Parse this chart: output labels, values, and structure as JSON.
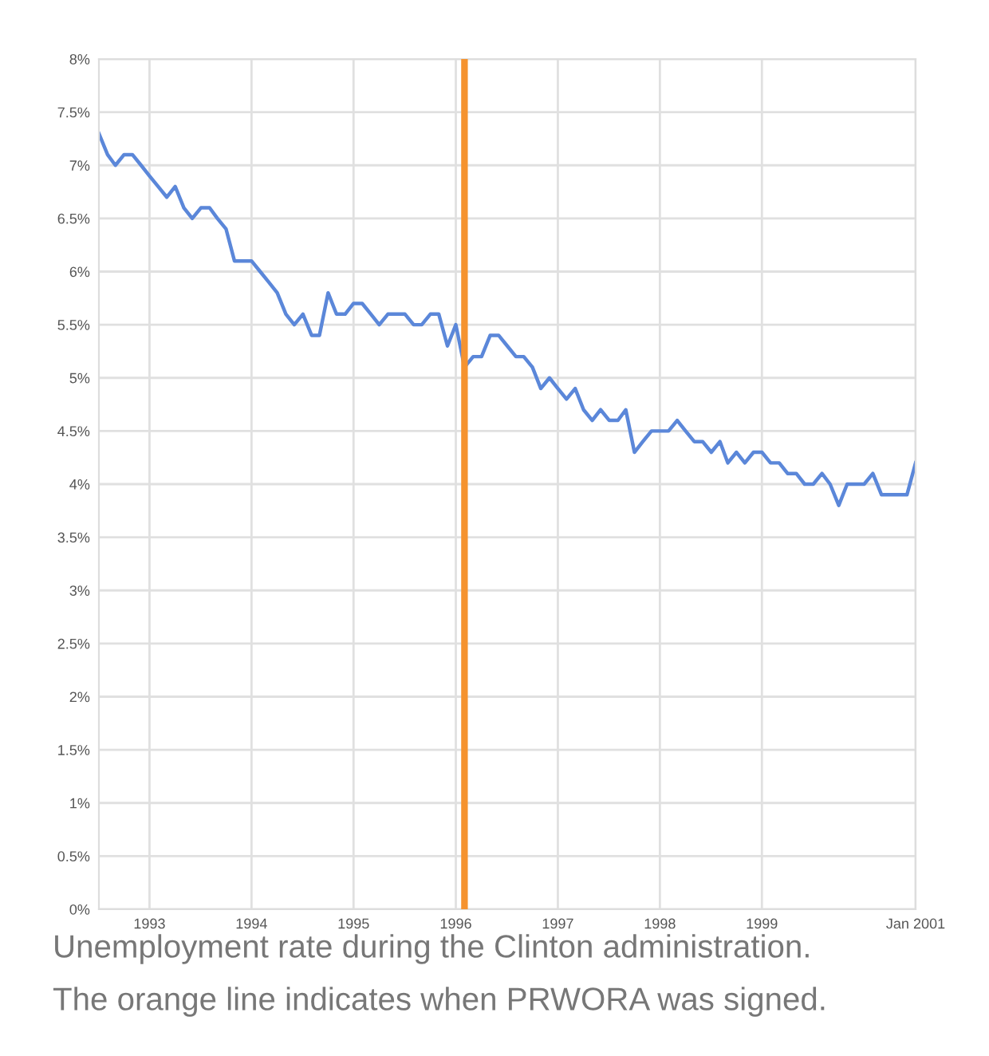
{
  "chart_data": {
    "type": "line",
    "x": [
      "1993-01",
      "1993-02",
      "1993-03",
      "1993-04",
      "1993-05",
      "1993-06",
      "1993-07",
      "1993-08",
      "1993-09",
      "1993-10",
      "1993-11",
      "1993-12",
      "1994-01",
      "1994-02",
      "1994-03",
      "1994-04",
      "1994-05",
      "1994-06",
      "1994-07",
      "1994-08",
      "1994-09",
      "1994-10",
      "1994-11",
      "1994-12",
      "1995-01",
      "1995-02",
      "1995-03",
      "1995-04",
      "1995-05",
      "1995-06",
      "1995-07",
      "1995-08",
      "1995-09",
      "1995-10",
      "1995-11",
      "1995-12",
      "1996-01",
      "1996-02",
      "1996-03",
      "1996-04",
      "1996-05",
      "1996-06",
      "1996-07",
      "1996-08",
      "1996-09",
      "1996-10",
      "1996-11",
      "1996-12",
      "1997-01",
      "1997-02",
      "1997-03",
      "1997-04",
      "1997-05",
      "1997-06",
      "1997-07",
      "1997-08",
      "1997-09",
      "1997-10",
      "1997-11",
      "1997-12",
      "1998-01",
      "1998-02",
      "1998-03",
      "1998-04",
      "1998-05",
      "1998-06",
      "1998-07",
      "1998-08",
      "1998-09",
      "1998-10",
      "1998-11",
      "1998-12",
      "1999-01",
      "1999-02",
      "1999-03",
      "1999-04",
      "1999-05",
      "1999-06",
      "1999-07",
      "1999-08",
      "1999-09",
      "1999-10",
      "1999-11",
      "1999-12",
      "2000-01",
      "2000-02",
      "2000-03",
      "2000-04",
      "2000-05",
      "2000-06",
      "2000-07",
      "2000-08",
      "2000-09",
      "2000-10",
      "2000-11",
      "2000-12",
      "2001-01"
    ],
    "series": [
      {
        "color": "#5b87d9",
        "values": [
          7.3,
          7.1,
          7.0,
          7.1,
          7.1,
          7.0,
          6.9,
          6.8,
          6.7,
          6.8,
          6.6,
          6.5,
          6.6,
          6.6,
          6.5,
          6.4,
          6.1,
          6.1,
          6.1,
          6.0,
          5.9,
          5.8,
          5.6,
          5.5,
          5.6,
          5.4,
          5.4,
          5.8,
          5.6,
          5.6,
          5.7,
          5.7,
          5.6,
          5.5,
          5.6,
          5.6,
          5.6,
          5.5,
          5.5,
          5.6,
          5.6,
          5.3,
          5.5,
          5.1,
          5.2,
          5.2,
          5.4,
          5.4,
          5.3,
          5.2,
          5.2,
          5.1,
          4.9,
          5.0,
          4.9,
          4.8,
          4.9,
          4.7,
          4.6,
          4.7,
          4.6,
          4.6,
          4.7,
          4.3,
          4.4,
          4.5,
          4.5,
          4.5,
          4.6,
          4.5,
          4.4,
          4.4,
          4.3,
          4.4,
          4.2,
          4.3,
          4.2,
          4.3,
          4.3,
          4.2,
          4.2,
          4.1,
          4.1,
          4.0,
          4.0,
          4.1,
          4.0,
          3.8,
          4.0,
          4.0,
          4.0,
          4.1,
          3.9,
          3.9,
          3.9,
          3.9,
          4.2
        ]
      }
    ],
    "xlim": [
      "1993-01",
      "2001-01"
    ],
    "xticks": [
      {
        "value": "1993-07",
        "label": "1993"
      },
      {
        "value": "1994-07",
        "label": "1994"
      },
      {
        "value": "1995-07",
        "label": "1995"
      },
      {
        "value": "1996-07",
        "label": "1996"
      },
      {
        "value": "1997-07",
        "label": "1997"
      },
      {
        "value": "1998-07",
        "label": "1998"
      },
      {
        "value": "1999-07",
        "label": "1999"
      },
      {
        "value": "2001-01",
        "label": "Jan 2001"
      }
    ],
    "ylim": [
      0,
      8
    ],
    "yticks": [
      {
        "value": 0,
        "label": "0%"
      },
      {
        "value": 0.5,
        "label": "0.5%"
      },
      {
        "value": 1,
        "label": "1%"
      },
      {
        "value": 1.5,
        "label": "1.5%"
      },
      {
        "value": 2,
        "label": "2%"
      },
      {
        "value": 2.5,
        "label": "2.5%"
      },
      {
        "value": 3,
        "label": "3%"
      },
      {
        "value": 3.5,
        "label": "3.5%"
      },
      {
        "value": 4,
        "label": "4%"
      },
      {
        "value": 4.5,
        "label": "4.5%"
      },
      {
        "value": 5,
        "label": "5%"
      },
      {
        "value": 5.5,
        "label": "5.5%"
      },
      {
        "value": 6,
        "label": "6%"
      },
      {
        "value": 6.5,
        "label": "6.5%"
      },
      {
        "value": 7,
        "label": "7%"
      },
      {
        "value": 7.5,
        "label": "7.5%"
      },
      {
        "value": 8,
        "label": "8%"
      }
    ],
    "ref_lines": [
      {
        "axis": "x",
        "value": "1996-08",
        "label": null,
        "color": "#f5932f"
      }
    ],
    "grid": true,
    "annotations": [
      "Unemployment rate during the Clinton administration.",
      "The orange line indicates when PRWORA was signed."
    ]
  }
}
